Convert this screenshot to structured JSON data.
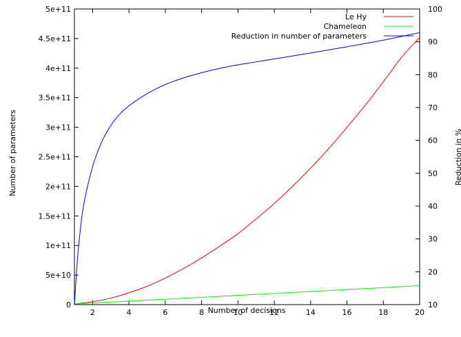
{
  "chart_data": {
    "type": "line",
    "title": "",
    "xlabel": "Number of decisions",
    "ylabel": "Number of parameters",
    "y2label": "Reduction in %",
    "xlim": [
      1,
      20
    ],
    "ylim": [
      0,
      500000000000
    ],
    "y2lim": [
      10,
      100
    ],
    "x_ticks": [
      2,
      4,
      6,
      8,
      10,
      12,
      14,
      16,
      18,
      20
    ],
    "x_tick_labels": [
      "2",
      "4",
      "6",
      "8",
      "10",
      "12",
      "14",
      "16",
      "18",
      "20"
    ],
    "y_ticks": [
      0,
      50000000000,
      100000000000,
      150000000000,
      200000000000,
      250000000000,
      300000000000,
      350000000000,
      400000000000,
      450000000000,
      500000000000
    ],
    "y_tick_labels": [
      "0",
      "5e+10",
      "1e+11",
      "1.5e+11",
      "2e+11",
      "2.5e+11",
      "3e+11",
      "3.5e+11",
      "4e+11",
      "4.5e+11",
      "5e+11"
    ],
    "y2_ticks": [
      10,
      20,
      30,
      40,
      50,
      60,
      70,
      80,
      90,
      100
    ],
    "y2_tick_labels": [
      "10",
      "20",
      "30",
      "40",
      "50",
      "60",
      "70",
      "80",
      "90",
      "100"
    ],
    "grid": false,
    "legend_position": "top-right",
    "series": [
      {
        "name": "Le Hy",
        "color": "#ff0000",
        "axis": "left",
        "x": [
          1,
          2,
          3,
          4,
          5,
          6,
          7,
          8,
          9,
          10,
          11,
          12,
          13,
          14,
          15,
          16,
          17,
          18,
          19,
          20
        ],
        "y": [
          1000000000,
          5000000000,
          11000000000,
          20000000000,
          31000000000,
          45000000000,
          61000000000,
          79000000000,
          99000000000,
          120000000000,
          145000000000,
          171000000000,
          200000000000,
          231000000000,
          264000000000,
          300000000000,
          337000000000,
          377000000000,
          418000000000,
          452000000000
        ]
      },
      {
        "name": "Chameleon",
        "color": "#00ff00",
        "axis": "left",
        "x": [
          1,
          20
        ],
        "y": [
          1000000000,
          32000000000
        ]
      },
      {
        "name": "Reduction in number of parameters",
        "color": "#0000ff",
        "axis": "right",
        "x": [
          1,
          1.2,
          1.5,
          2,
          2.5,
          3,
          3.5,
          4,
          5,
          6,
          7,
          8,
          9,
          10,
          12,
          14,
          16,
          18,
          20
        ],
        "y": [
          10,
          26,
          40,
          52,
          59.5,
          64.5,
          68,
          70.5,
          74.2,
          77,
          79,
          80.6,
          81.9,
          83,
          84.8,
          86.6,
          88.5,
          90.5,
          92.8
        ]
      }
    ]
  }
}
